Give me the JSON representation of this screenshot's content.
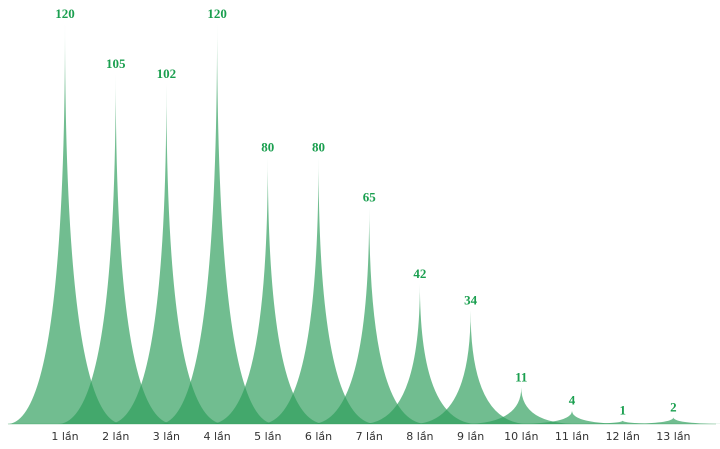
{
  "chart_data": {
    "type": "bar",
    "categories": [
      "1 lần",
      "2 lần",
      "3 lần",
      "4 lần",
      "5 lần",
      "6 lần",
      "7 lần",
      "8 lần",
      "9 lần",
      "10 lần",
      "11 lần",
      "12 lần",
      "13 lần"
    ],
    "values": [
      120,
      105,
      102,
      120,
      80,
      80,
      65,
      42,
      34,
      11,
      4,
      1,
      2
    ],
    "title": "",
    "xlabel": "",
    "ylabel": "",
    "ylim": [
      0,
      120
    ],
    "grid": false,
    "legend": "none",
    "bar_shape": "pictorial-spike",
    "colors": {
      "bar": "#2e9e5b",
      "label": "#1a9f4f",
      "axis_text": "#333333"
    }
  }
}
